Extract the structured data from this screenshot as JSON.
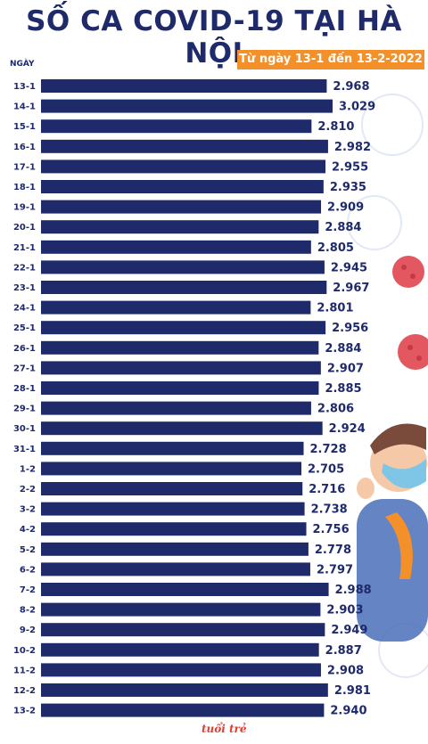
{
  "header": {
    "title": "SỐ CA COVID-19 TẠI HÀ NỘI",
    "subtitle": "Từ ngày 13-1 đến 13-2-2022",
    "axis_label": "NGÀY"
  },
  "footer": {
    "logo": "tuổi trẻ"
  },
  "colors": {
    "bar": "#1f2a6b",
    "accent": "#f3902a",
    "virus": "#e0454f"
  },
  "chart_data": {
    "type": "bar",
    "orientation": "horizontal",
    "title": "SỐ CA COVID-19 TẠI HÀ NỘI",
    "subtitle": "Từ ngày 13-1 đến 13-2-2022",
    "ylabel": "NGÀY",
    "categories": [
      "13-1",
      "14-1",
      "15-1",
      "16-1",
      "17-1",
      "18-1",
      "19-1",
      "20-1",
      "21-1",
      "22-1",
      "23-1",
      "24-1",
      "25-1",
      "26-1",
      "27-1",
      "28-1",
      "29-1",
      "30-1",
      "31-1",
      "1-2",
      "2-2",
      "3-2",
      "4-2",
      "5-2",
      "6-2",
      "7-2",
      "8-2",
      "9-2",
      "10-2",
      "11-2",
      "12-2",
      "13-2"
    ],
    "values": [
      2968,
      3029,
      2810,
      2982,
      2955,
      2935,
      2909,
      2884,
      2805,
      2945,
      2967,
      2801,
      2956,
      2884,
      2907,
      2885,
      2806,
      2924,
      2728,
      2705,
      2716,
      2738,
      2756,
      2778,
      2797,
      2988,
      2903,
      2949,
      2887,
      2908,
      2981,
      2940
    ],
    "value_labels": [
      "2.968",
      "3.029",
      "2.810",
      "2.982",
      "2.955",
      "2.935",
      "2.909",
      "2.884",
      "2.805",
      "2.945",
      "2.967",
      "2.801",
      "2.956",
      "2.884",
      "2.907",
      "2.885",
      "2.806",
      "2.924",
      "2.728",
      "2.705",
      "2.716",
      "2.738",
      "2.756",
      "2.778",
      "2.797",
      "2.988",
      "2.903",
      "2.949",
      "2.887",
      "2.908",
      "2.981",
      "2.940"
    ],
    "grid": false,
    "legend": "none"
  }
}
